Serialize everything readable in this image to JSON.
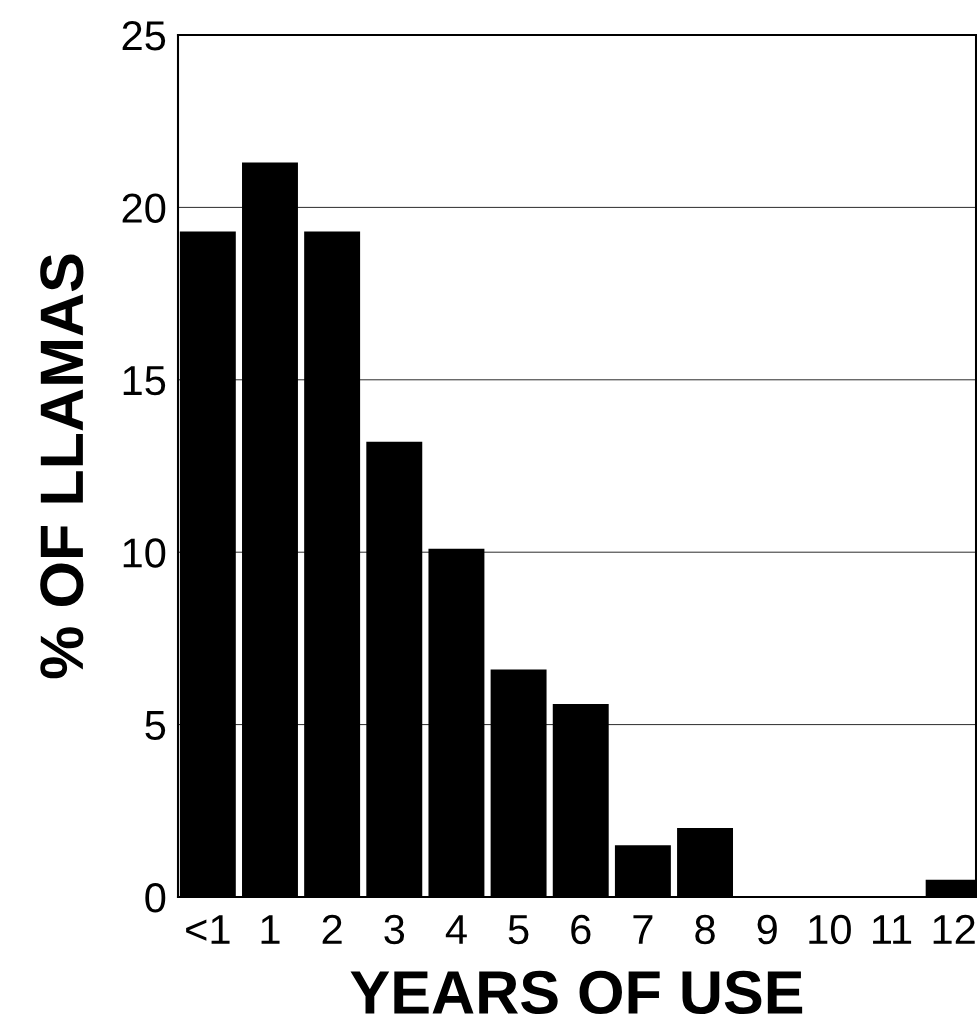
{
  "chart_data": {
    "type": "bar",
    "xlabel": "YEARS OF USE",
    "ylabel": "% OF LLAMAS",
    "categories": [
      "<1",
      "1",
      "2",
      "3",
      "4",
      "5",
      "6",
      "7",
      "8",
      "9",
      "10",
      "11",
      "12"
    ],
    "values": [
      19.3,
      21.3,
      19.3,
      13.2,
      10.1,
      6.6,
      5.6,
      1.5,
      2.0,
      0,
      0,
      0,
      0.5
    ],
    "color": "#000000",
    "ylim": [
      0,
      25
    ],
    "yticks": [
      0,
      5,
      10,
      15,
      20,
      25
    ],
    "grid": "y",
    "legend": false
  }
}
